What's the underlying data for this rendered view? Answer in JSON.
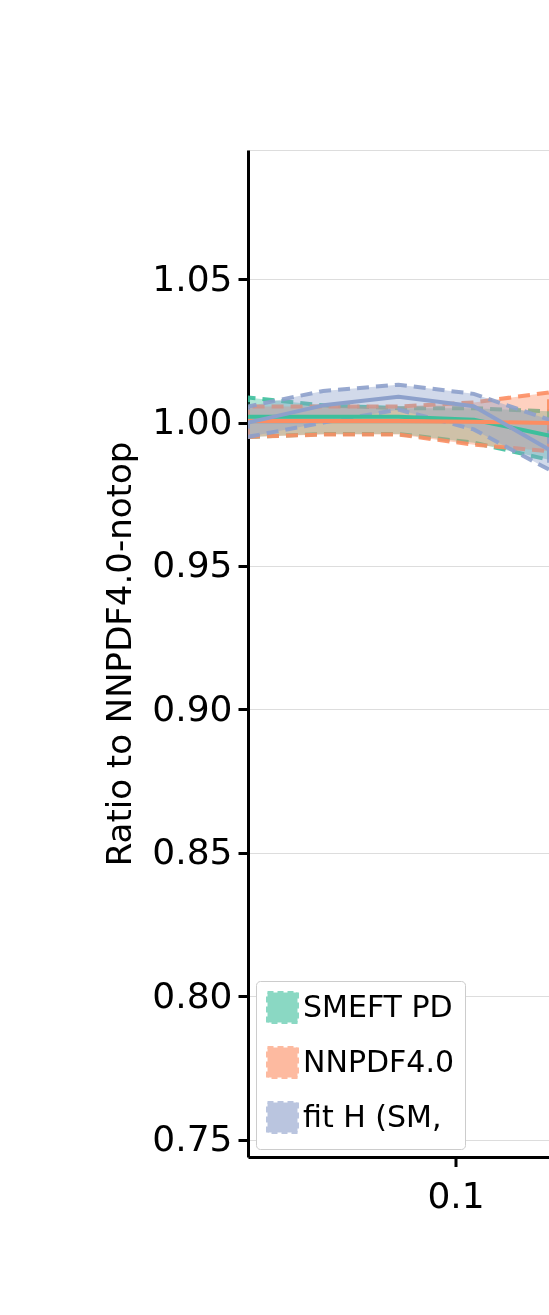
{
  "chart_data": {
    "type": "line",
    "ylabel": "Ratio to NNPDF4.0-notop",
    "categories": [
      null,
      null,
      null,
      null,
      null
    ],
    "annotations": [
      "0.1"
    ],
    "series": [
      {
        "name": "SMEFT PD",
        "color": "#3dbf9c",
        "values": [
          1.002,
          1.002,
          1.002,
          1.001,
          0.9955
        ],
        "lower": [
          0.995,
          0.996,
          0.996,
          0.993,
          0.987
        ],
        "upper": [
          1.0087,
          1.006,
          1.005,
          1.005,
          1.0039
        ]
      },
      {
        "name": "NNPDF4.0",
        "color": "#fc8d62",
        "values": [
          1.0005,
          1.0005,
          1.0005,
          1.0003,
          0.9998
        ],
        "lower": [
          0.995,
          0.9958,
          0.9958,
          0.9923,
          0.99
        ],
        "upper": [
          1.0056,
          1.0056,
          1.0056,
          1.007,
          1.0105
        ]
      },
      {
        "name": "fit H (SM,",
        "color": "#8da0cb",
        "values": [
          1.0,
          1.006,
          1.009,
          1.0057,
          0.9906
        ],
        "lower": [
          0.995,
          1.0,
          1.0045,
          0.9976,
          0.9836
        ],
        "upper": [
          1.0056,
          1.011,
          1.0132,
          1.01,
          1.001
        ]
      }
    ],
    "ylim": [
      0.744,
      1.095
    ],
    "yticks": [
      0.75,
      {
        "value": 0.8,
        "label": "0.80"
      },
      0.85,
      {
        "value": 0.9,
        "label": "0.90"
      },
      0.95,
      {
        "value": 1.0,
        "label": "1.00"
      },
      1.05
    ],
    "grid": "y",
    "legend": "bottom left",
    "line_style": "solid",
    "marker": "none"
  }
}
